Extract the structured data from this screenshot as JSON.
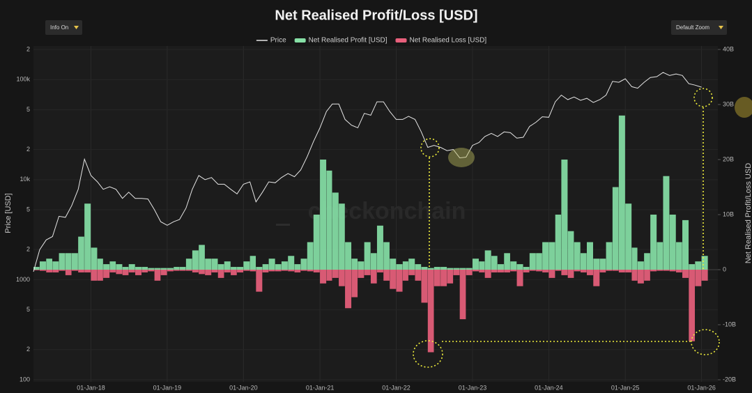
{
  "ui": {
    "buttons": [
      "Info On",
      "Default Zoom"
    ]
  },
  "chart_data": {
    "type": "line",
    "title": "Net Realised Profit/Loss [USD]",
    "watermark": "checkonchain",
    "ylabel": "Price [USD]",
    "y2label": "Net Realised Profit/Loss USD",
    "legend": "top",
    "grid": true,
    "ylog": true,
    "xlim": [
      "2017-04-01",
      "2026-03-20"
    ],
    "xticks": [
      {
        "value": "2018-01-01",
        "label": "01-Jan-18"
      },
      {
        "value": "2019-01-01",
        "label": "01-Jan-19"
      },
      {
        "value": "2020-01-01",
        "label": "01-Jan-20"
      },
      {
        "value": "2021-01-01",
        "label": "01-Jan-21"
      },
      {
        "value": "2022-01-01",
        "label": "01-Jan-22"
      },
      {
        "value": "2023-01-01",
        "label": "01-Jan-23"
      },
      {
        "value": "2024-01-01",
        "label": "01-Jan-24"
      },
      {
        "value": "2025-01-01",
        "label": "01-Jan-25"
      },
      {
        "value": "2026-01-01",
        "label": "01-Jan-26"
      }
    ],
    "ylim": [
      100,
      200000
    ],
    "yticks": [
      100,
      {
        "value": 200,
        "label": "2"
      },
      {
        "value": 500,
        "label": "5"
      },
      1000,
      {
        "value": 2000,
        "label": "2"
      },
      {
        "value": 5000,
        "label": "5"
      },
      {
        "value": 10000,
        "label": "10k"
      },
      {
        "value": 20000,
        "label": "2"
      },
      {
        "value": 50000,
        "label": "5"
      },
      {
        "value": 100000,
        "label": "100k"
      },
      {
        "value": 200000,
        "label": "2"
      }
    ],
    "y2lim": [
      -20000000000.0,
      40000000000.0
    ],
    "y2ticks": [
      {
        "value": -20000000000.0,
        "label": "-20B"
      },
      {
        "value": -10000000000.0,
        "label": "-10B"
      },
      0,
      {
        "value": 10000000000.0,
        "label": "10B"
      },
      {
        "value": 20000000000.0,
        "label": "20B"
      },
      {
        "value": 30000000000.0,
        "label": "30B"
      },
      {
        "value": 40000000000.0,
        "label": "40B"
      }
    ],
    "x": [
      "2017-04-01",
      "2017-05-01",
      "2017-06-01",
      "2017-07-01",
      "2017-08-01",
      "2017-09-01",
      "2017-10-01",
      "2017-11-01",
      "2017-12-01",
      "2018-01-01",
      "2018-02-01",
      "2018-03-01",
      "2018-04-01",
      "2018-05-01",
      "2018-06-01",
      "2018-07-01",
      "2018-08-01",
      "2018-09-01",
      "2018-10-01",
      "2018-11-01",
      "2018-12-01",
      "2019-01-01",
      "2019-02-01",
      "2019-03-01",
      "2019-04-01",
      "2019-05-01",
      "2019-06-01",
      "2019-07-01",
      "2019-08-01",
      "2019-09-01",
      "2019-10-01",
      "2019-11-01",
      "2019-12-01",
      "2020-01-01",
      "2020-02-01",
      "2020-03-01",
      "2020-04-01",
      "2020-05-01",
      "2020-06-01",
      "2020-07-01",
      "2020-08-01",
      "2020-09-01",
      "2020-10-01",
      "2020-11-01",
      "2020-12-01",
      "2021-01-01",
      "2021-02-01",
      "2021-03-01",
      "2021-04-01",
      "2021-05-01",
      "2021-06-01",
      "2021-07-01",
      "2021-08-01",
      "2021-09-01",
      "2021-10-01",
      "2021-11-01",
      "2021-12-01",
      "2022-01-01",
      "2022-02-01",
      "2022-03-01",
      "2022-04-01",
      "2022-05-01",
      "2022-06-01",
      "2022-07-01",
      "2022-08-01",
      "2022-09-01",
      "2022-10-01",
      "2022-11-01",
      "2022-12-01",
      "2023-01-01",
      "2023-02-01",
      "2023-03-01",
      "2023-04-01",
      "2023-05-01",
      "2023-06-01",
      "2023-07-01",
      "2023-08-01",
      "2023-09-01",
      "2023-10-01",
      "2023-11-01",
      "2023-12-01",
      "2024-01-01",
      "2024-02-01",
      "2024-03-01",
      "2024-04-01",
      "2024-05-01",
      "2024-06-01",
      "2024-07-01",
      "2024-08-01",
      "2024-09-01",
      "2024-10-01",
      "2024-11-01",
      "2024-12-01",
      "2025-01-01",
      "2025-02-01",
      "2025-03-01",
      "2025-04-01",
      "2025-05-01",
      "2025-06-01",
      "2025-07-01",
      "2025-08-01",
      "2025-09-01",
      "2025-10-01",
      "2025-11-01",
      "2025-12-01",
      "2026-01-01"
    ],
    "series": [
      {
        "name": "Price",
        "type": "line",
        "axis": "y",
        "color": "#e6e6e6",
        "values": [
          1200,
          2000,
          2500,
          2700,
          4300,
          4200,
          5500,
          8000,
          16000,
          11000,
          9500,
          8000,
          8500,
          8000,
          6500,
          7500,
          6500,
          6500,
          6400,
          5000,
          3800,
          3500,
          3800,
          4000,
          5200,
          8000,
          11000,
          10000,
          10500,
          9000,
          9000,
          8000,
          7200,
          9000,
          9500,
          6000,
          7500,
          9500,
          9300,
          10500,
          11500,
          10700,
          12500,
          17000,
          24000,
          33000,
          48000,
          57000,
          57000,
          40000,
          35000,
          33000,
          46000,
          44000,
          60000,
          60000,
          48000,
          40000,
          40000,
          43000,
          40000,
          30000,
          21000,
          22000,
          21000,
          19500,
          20000,
          16500,
          16800,
          22000,
          23500,
          27000,
          29000,
          27000,
          30000,
          29500,
          26000,
          26500,
          34000,
          37500,
          42500,
          42000,
          60000,
          70000,
          63000,
          67000,
          62000,
          65000,
          59000,
          63000,
          70000,
          96000,
          94000,
          102000,
          85000,
          82000,
          94000,
          105000,
          107000,
          118000,
          110000,
          114000,
          110000,
          91000,
          88000,
          84000
        ]
      },
      {
        "name": "Net Realised Profit [USD]",
        "type": "bar",
        "axis": "y2",
        "color": "#86e0a6",
        "values": [
          500000000.0,
          1500000000.0,
          2000000000.0,
          1500000000.0,
          3000000000.0,
          3000000000.0,
          3000000000.0,
          6000000000.0,
          12000000000.0,
          4000000000.0,
          2000000000.0,
          1000000000.0,
          1500000000.0,
          1000000000.0,
          500000000.0,
          1000000000.0,
          500000000.0,
          500000000.0,
          300000000.0,
          300000000.0,
          300000000.0,
          300000000.0,
          500000000.0,
          500000000.0,
          2000000000.0,
          3500000000.0,
          4500000000.0,
          2000000000.0,
          2000000000.0,
          1000000000.0,
          1500000000.0,
          500000000.0,
          500000000.0,
          1500000000.0,
          2500000000.0,
          500000000.0,
          1000000000.0,
          2000000000.0,
          1000000000.0,
          1500000000.0,
          2500000000.0,
          1000000000.0,
          2000000000.0,
          5000000000.0,
          10000000000.0,
          20000000000.0,
          18000000000.0,
          14000000000.0,
          12000000000.0,
          5000000000.0,
          2000000000.0,
          1500000000.0,
          5000000000.0,
          3000000000.0,
          8000000000.0,
          5000000000.0,
          2000000000.0,
          1000000000.0,
          1500000000.0,
          2000000000.0,
          1000000000.0,
          500000000.0,
          300000000.0,
          500000000.0,
          500000000.0,
          300000000.0,
          300000000.0,
          300000000.0,
          300000000.0,
          2000000000.0,
          1500000000.0,
          3500000000.0,
          2500000000.0,
          1000000000.0,
          3000000000.0,
          1500000000.0,
          1000000000.0,
          500000000.0,
          3000000000.0,
          3000000000.0,
          5000000000.0,
          5000000000.0,
          10000000000.0,
          20000000000.0,
          7000000000.0,
          5000000000.0,
          3000000000.0,
          5000000000.0,
          2000000000.0,
          2000000000.0,
          5000000000.0,
          15000000000.0,
          28000000000.0,
          12000000000.0,
          4000000000.0,
          1500000000.0,
          3000000000.0,
          10000000000.0,
          5000000000.0,
          17000000000.0,
          10000000000.0,
          5000000000.0,
          9000000000.0,
          1000000000.0,
          1500000000.0,
          2500000000.0
        ]
      },
      {
        "name": "Net Realised Loss [USD]",
        "type": "bar",
        "axis": "y2",
        "color": "#e8607c",
        "values": [
          -100000000.0,
          -200000000.0,
          -500000000.0,
          -500000000.0,
          -200000000.0,
          -1000000000.0,
          -200000000.0,
          -500000000.0,
          -500000000.0,
          -2000000000.0,
          -2000000000.0,
          -1500000000.0,
          -500000000.0,
          -800000000.0,
          -1000000000.0,
          -500000000.0,
          -1000000000.0,
          -500000000.0,
          -300000000.0,
          -2000000000.0,
          -1000000000.0,
          -300000000.0,
          -200000000.0,
          -200000000.0,
          -200000000.0,
          -500000000.0,
          -800000000.0,
          -1000000000.0,
          -500000000.0,
          -1500000000.0,
          -500000000.0,
          -1000000000.0,
          -500000000.0,
          -200000000.0,
          -300000000.0,
          -4000000000.0,
          -500000000.0,
          -300000000.0,
          -300000000.0,
          -200000000.0,
          -300000000.0,
          -500000000.0,
          -200000000.0,
          -300000000.0,
          -500000000.0,
          -2500000000.0,
          -2000000000.0,
          -1500000000.0,
          -3000000000.0,
          -7000000000.0,
          -5000000000.0,
          -1500000000.0,
          -1000000000.0,
          -2500000000.0,
          -500000000.0,
          -2000000000.0,
          -3500000000.0,
          -4000000000.0,
          -2000000000.0,
          -1000000000.0,
          -2000000000.0,
          -6000000000.0,
          -15000000000.0,
          -3000000000.0,
          -3000000000.0,
          -2500000000.0,
          -1000000000.0,
          -9000000000.0,
          -1000000000.0,
          -300000000.0,
          -500000000.0,
          -1500000000.0,
          -500000000.0,
          -500000000.0,
          -500000000.0,
          -300000000.0,
          -3000000000.0,
          -500000000.0,
          -200000000.0,
          -300000000.0,
          -500000000.0,
          -1500000000.0,
          -200000000.0,
          -1000000000.0,
          -1500000000.0,
          -300000000.0,
          -500000000.0,
          -1000000000.0,
          -3000000000.0,
          -500000000.0,
          -200000000.0,
          -200000000.0,
          -500000000.0,
          -500000000.0,
          -2000000000.0,
          -2500000000.0,
          -2000000000.0,
          -300000000.0,
          -200000000.0,
          -200000000.0,
          -300000000.0,
          -500000000.0,
          -1500000000.0,
          -13000000000.0,
          -3000000000.0,
          -2000000000.0
        ]
      }
    ]
  }
}
